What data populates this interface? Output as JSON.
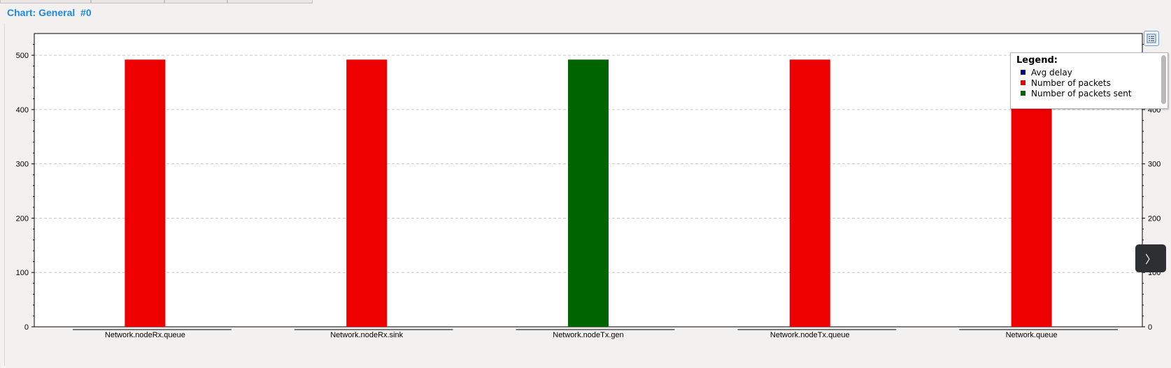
{
  "window": {
    "title": "Chart: General  #0"
  },
  "colors": {
    "avg_delay": "#000080",
    "number_of_packets": "#ee0000",
    "number_of_packets_sent": "#006400",
    "title": "#1e88e5"
  },
  "legend": {
    "title": "Legend:",
    "items": [
      {
        "label": "Avg delay",
        "color": "#000080"
      },
      {
        "label": "Number of packets",
        "color": "#ee0000"
      },
      {
        "label": "Number of packets sent",
        "color": "#006400"
      }
    ]
  },
  "icons": {
    "legend_toggle": "list-icon",
    "next": "chevron-right-icon"
  },
  "nav": {
    "next_glyph": "〉"
  },
  "chart_data": {
    "type": "bar",
    "categories": [
      "Network.nodeRx.queue",
      "Network.nodeRx.sink",
      "Network.nodeTx.gen",
      "Network.nodeTx.queue",
      "Network.queue"
    ],
    "series": [
      {
        "name": "Avg delay",
        "values": [
          0,
          0,
          0,
          0,
          0
        ]
      },
      {
        "name": "Number of packets",
        "values": [
          492,
          492,
          null,
          492,
          492
        ]
      },
      {
        "name": "Number of packets sent",
        "values": [
          null,
          null,
          492,
          null,
          null
        ]
      }
    ],
    "ylim": [
      0,
      540
    ],
    "yticks": [
      0,
      100,
      200,
      300,
      400,
      500
    ],
    "grid": true,
    "legend_position": "top-right",
    "title": "",
    "xlabel": "",
    "ylabel": ""
  }
}
